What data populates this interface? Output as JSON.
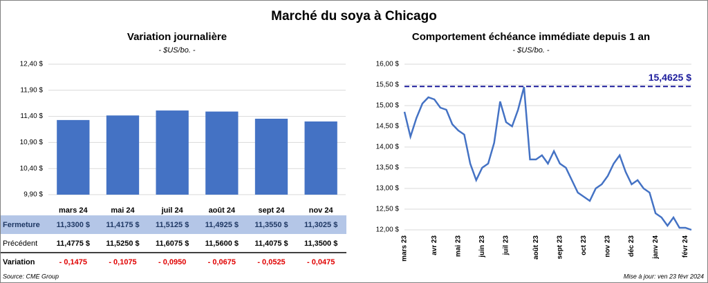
{
  "title": "Marché du soya à Chicago",
  "chart_data": [
    {
      "type": "bar",
      "title": "Variation journalière",
      "subtitle": "- $US/bo. -",
      "categories": [
        "mars 24",
        "mai 24",
        "juil 24",
        "août 24",
        "sept 24",
        "nov 24"
      ],
      "values": [
        11.33,
        11.4175,
        11.5125,
        11.4925,
        11.355,
        11.3025
      ],
      "value_labels": [
        "11,3300  $",
        "11,4175  $",
        "11,5125  $",
        "11,4925  $",
        "11,3550  $",
        "11,3025  $"
      ],
      "color": "#4472c4",
      "ylim": [
        9.9,
        12.4
      ],
      "yticks": [
        {
          "value": 9.9,
          "label": "9,90 $"
        },
        {
          "value": 10.4,
          "label": "10,40 $"
        },
        {
          "value": 10.9,
          "label": "10,90 $"
        },
        {
          "value": 11.4,
          "label": "11,40 $"
        },
        {
          "value": 11.9,
          "label": "11,90 $"
        },
        {
          "value": 12.4,
          "label": "12,40 $"
        }
      ],
      "grid": true
    },
    {
      "type": "line",
      "title": "Comportement  échéance immédiate depuis 1 an",
      "subtitle": "- $US/bo. -",
      "categories": [
        "mars 23",
        null,
        null,
        null,
        null,
        "avr 23",
        null,
        null,
        null,
        "mai 23",
        null,
        null,
        null,
        "juin 23",
        null,
        null,
        null,
        "juil 23",
        null,
        null,
        null,
        null,
        "août 23",
        null,
        null,
        null,
        "sept 23",
        null,
        null,
        null,
        "oct 23",
        null,
        null,
        null,
        "nov 23",
        null,
        null,
        null,
        "déc 23",
        null,
        null,
        null,
        "janv 24",
        null,
        null,
        null,
        null,
        "févr 24",
        null
      ],
      "values": [
        14.85,
        14.25,
        14.7,
        15.05,
        15.2,
        15.15,
        14.95,
        14.9,
        14.55,
        14.4,
        14.3,
        13.6,
        13.2,
        13.5,
        13.6,
        14.1,
        15.1,
        14.6,
        14.5,
        14.9,
        15.45,
        13.7,
        13.7,
        13.8,
        13.6,
        13.9,
        13.6,
        13.5,
        13.2,
        12.9,
        12.8,
        12.7,
        13.0,
        13.1,
        13.3,
        13.6,
        13.8,
        13.4,
        13.1,
        13.2,
        13.0,
        12.9,
        12.4,
        12.3,
        12.1,
        12.3,
        12.05,
        12.05,
        12.0
      ],
      "color": "#4472c4",
      "ylim": [
        12,
        16
      ],
      "yticks": [
        {
          "value": 12,
          "label": "12,00 $"
        },
        {
          "value": 12.5,
          "label": "12,50 $"
        },
        {
          "value": 13,
          "label": "13,00 $"
        },
        {
          "value": 13.5,
          "label": "13,50 $"
        },
        {
          "value": 14,
          "label": "14,00 $"
        },
        {
          "value": 14.5,
          "label": "14,50 $"
        },
        {
          "value": 15,
          "label": "15,00 $"
        },
        {
          "value": 15.5,
          "label": "15,50 $"
        },
        {
          "value": 16,
          "label": "16,00 $"
        }
      ],
      "grid": true,
      "reference": {
        "value": 15.4625,
        "label": "15,4625 $",
        "color": "#1c1c9c"
      }
    }
  ],
  "table": {
    "row_labels": [
      "Fermeture",
      "Précédent",
      "Variation"
    ],
    "previous": [
      "11,4775  $",
      "11,5250  $",
      "11,6075  $",
      "11,5600  $",
      "11,4075  $",
      "11,3500  $"
    ],
    "variation": [
      "- 0,1475",
      "- 0,1075",
      "- 0,0950",
      "- 0,0675",
      "- 0,0525",
      "- 0,0475"
    ]
  },
  "source": "Source: CME Group",
  "updated": "Mise à jour: ven 23 févr 2024"
}
